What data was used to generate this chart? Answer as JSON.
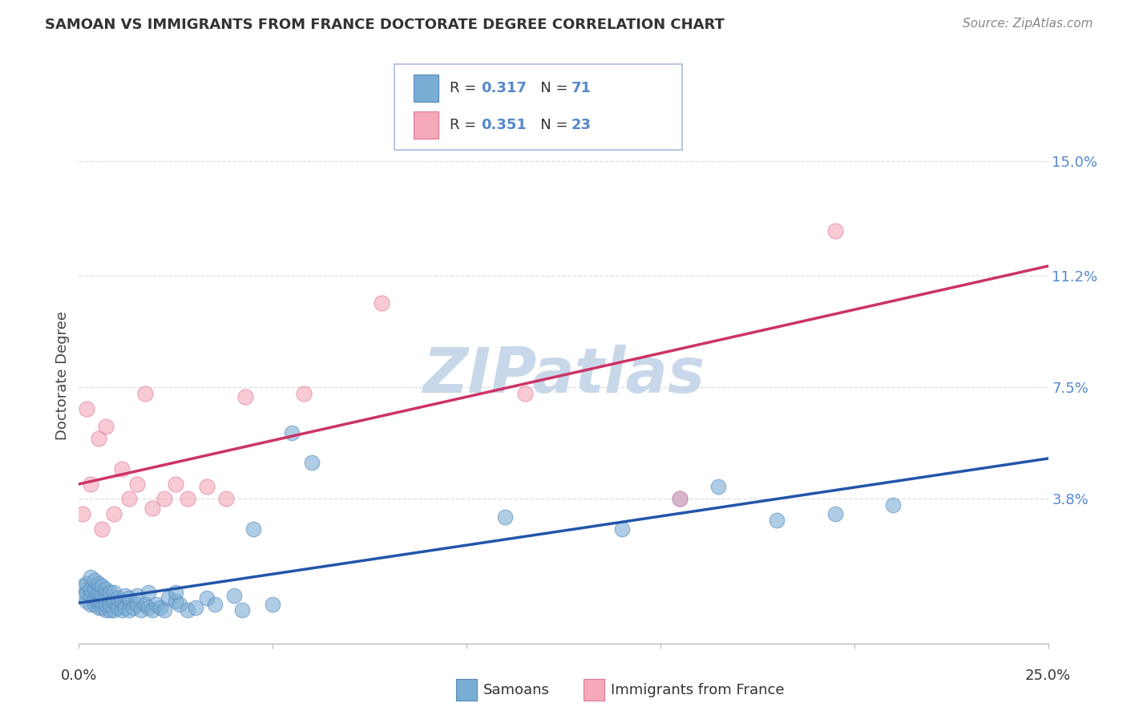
{
  "title": "SAMOAN VS IMMIGRANTS FROM FRANCE DOCTORATE DEGREE CORRELATION CHART",
  "source": "Source: ZipAtlas.com",
  "ylabel": "Doctorate Degree",
  "right_yticks": [
    "15.0%",
    "11.2%",
    "7.5%",
    "3.8%"
  ],
  "right_ytick_vals": [
    0.15,
    0.112,
    0.075,
    0.038
  ],
  "xmin": 0.0,
  "xmax": 0.25,
  "ymin": -0.01,
  "ymax": 0.168,
  "samoans_color": "#7aadd4",
  "samoans_edge_color": "#5588bb",
  "france_color": "#f4a8b8",
  "france_edge_color": "#dd7799",
  "samoans_line_color": "#2255aa",
  "france_line_color": "#cc3366",
  "legend_box_color": "#aabbdd",
  "watermark_color": "#c8d8ea",
  "title_color": "#333333",
  "source_color": "#888888",
  "right_tick_color": "#5588cc",
  "grid_color": "#dddddd",
  "bottom_spine_color": "#bbbbbb",
  "samoans_x": [
    0.001,
    0.001,
    0.002,
    0.002,
    0.002,
    0.003,
    0.003,
    0.003,
    0.003,
    0.004,
    0.004,
    0.004,
    0.004,
    0.005,
    0.005,
    0.005,
    0.005,
    0.006,
    0.006,
    0.006,
    0.006,
    0.007,
    0.007,
    0.007,
    0.007,
    0.008,
    0.008,
    0.008,
    0.009,
    0.009,
    0.009,
    0.01,
    0.01,
    0.011,
    0.011,
    0.012,
    0.012,
    0.013,
    0.013,
    0.014,
    0.015,
    0.015,
    0.016,
    0.017,
    0.018,
    0.018,
    0.019,
    0.02,
    0.021,
    0.022,
    0.023,
    0.025,
    0.025,
    0.026,
    0.028,
    0.03,
    0.033,
    0.035,
    0.04,
    0.042,
    0.045,
    0.05,
    0.055,
    0.06,
    0.11,
    0.14,
    0.155,
    0.165,
    0.18,
    0.195,
    0.21
  ],
  "samoans_y": [
    0.006,
    0.009,
    0.004,
    0.007,
    0.01,
    0.003,
    0.006,
    0.008,
    0.012,
    0.003,
    0.005,
    0.008,
    0.011,
    0.002,
    0.004,
    0.007,
    0.01,
    0.002,
    0.004,
    0.006,
    0.009,
    0.001,
    0.003,
    0.006,
    0.008,
    0.001,
    0.003,
    0.007,
    0.001,
    0.004,
    0.007,
    0.002,
    0.005,
    0.001,
    0.004,
    0.002,
    0.006,
    0.001,
    0.005,
    0.002,
    0.003,
    0.006,
    0.001,
    0.003,
    0.002,
    0.007,
    0.001,
    0.003,
    0.002,
    0.001,
    0.005,
    0.004,
    0.007,
    0.003,
    0.001,
    0.002,
    0.005,
    0.003,
    0.006,
    0.001,
    0.028,
    0.003,
    0.06,
    0.05,
    0.032,
    0.028,
    0.038,
    0.042,
    0.031,
    0.033,
    0.036
  ],
  "france_x": [
    0.001,
    0.002,
    0.003,
    0.005,
    0.006,
    0.007,
    0.009,
    0.011,
    0.013,
    0.015,
    0.017,
    0.019,
    0.022,
    0.025,
    0.028,
    0.033,
    0.038,
    0.043,
    0.058,
    0.078,
    0.115,
    0.155,
    0.195
  ],
  "france_y": [
    0.033,
    0.068,
    0.043,
    0.058,
    0.028,
    0.062,
    0.033,
    0.048,
    0.038,
    0.043,
    0.073,
    0.035,
    0.038,
    0.043,
    0.038,
    0.042,
    0.038,
    0.072,
    0.073,
    0.103,
    0.073,
    0.038,
    0.127
  ]
}
